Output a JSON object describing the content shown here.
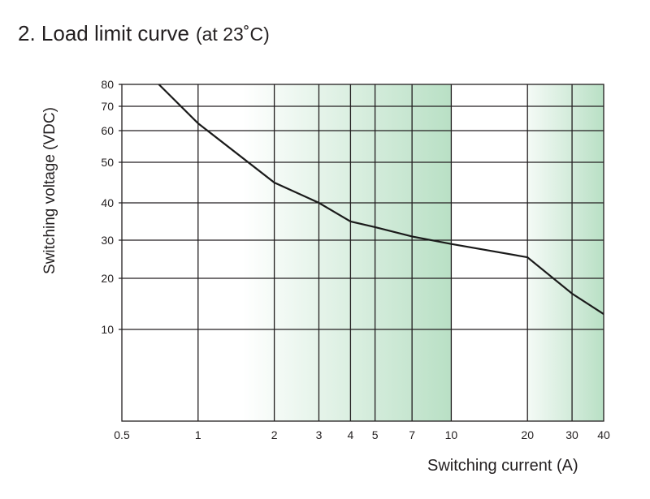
{
  "page": {
    "title": "2. Load limit curve",
    "subtitle": "(at 23˚C)"
  },
  "colors": {
    "grid": "#231f20",
    "curve": "#1a1a1a",
    "shade": "#b9e0c5"
  },
  "chart_data": {
    "type": "line",
    "title": "2. Load limit curve  (at 23˚C)",
    "xlabel": "Switching current (A)",
    "ylabel": "Switching voltage (VDC)",
    "xscale": "log",
    "xlim": [
      0.5,
      40
    ],
    "ylim_label_range": [
      10,
      80
    ],
    "x_ticks": [
      0.5,
      1,
      2,
      3,
      4,
      5,
      7,
      10,
      20,
      30,
      40
    ],
    "x_tick_labels": [
      "0.5",
      "1",
      "2",
      "3",
      "4",
      "5",
      "7",
      "10",
      "20",
      "30",
      "40"
    ],
    "x_gridlines": [
      1,
      2,
      3,
      4,
      5,
      7,
      10,
      20,
      30
    ],
    "y_ticks": [
      10,
      20,
      30,
      40,
      50,
      60,
      70,
      80
    ],
    "y_tick_labels": [
      "10",
      "20",
      "30",
      "40",
      "50",
      "60",
      "70",
      "80"
    ],
    "grid": true,
    "shaded_regions": [
      {
        "from": 1.5,
        "to": 10,
        "style": "gradient"
      },
      {
        "from": 20,
        "to": 40,
        "style": "gradient"
      }
    ],
    "series": [
      {
        "x": [
          0.7,
          1,
          2,
          3,
          4,
          5,
          7,
          10,
          20,
          30,
          40
        ],
        "y": [
          80,
          63,
          45,
          40,
          35,
          33.5,
          31,
          29,
          25.5,
          17,
          13
        ]
      }
    ]
  }
}
